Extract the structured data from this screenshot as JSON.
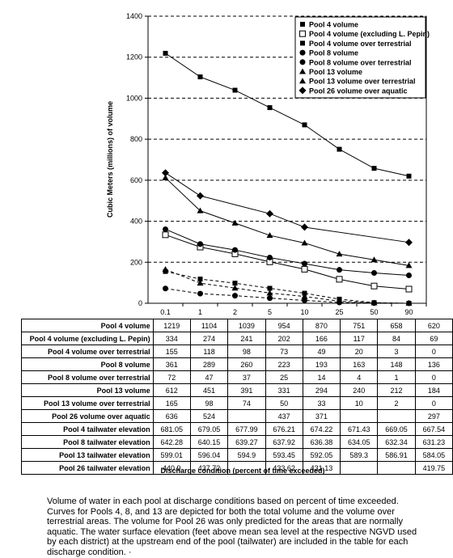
{
  "chart_data": {
    "type": "line",
    "ylabel": "Cubic Meters (millions) of volume",
    "xlabel": "Discharge condition (percent of time exceeded)",
    "categories": [
      "0.1",
      "1",
      "2",
      "5",
      "10",
      "25",
      "50",
      "90"
    ],
    "ylim": [
      0,
      1400
    ],
    "yticks": [
      "0",
      "200",
      "400",
      "600",
      "800",
      "1000",
      "1200",
      "1400"
    ],
    "grid": "horizontal dashed",
    "legend_position": "top-right",
    "series": [
      {
        "name": "Pool 4 volume",
        "marker": "square",
        "line": "solid",
        "values": [
          1219,
          1104,
          1039,
          954,
          870,
          751,
          658,
          620
        ]
      },
      {
        "name": "Pool 4 volume (excluding L. Pepin)",
        "marker": "square-open",
        "line": "solid",
        "values": [
          334,
          274,
          241,
          202,
          166,
          117,
          84,
          69
        ]
      },
      {
        "name": "Pool 4 volume over terrestrial",
        "marker": "square",
        "line": "dashed",
        "values": [
          155,
          118,
          98,
          73,
          49,
          20,
          3,
          0
        ]
      },
      {
        "name": "Pool 8 volume",
        "marker": "circle",
        "line": "solid",
        "values": [
          361,
          289,
          260,
          223,
          193,
          163,
          148,
          136
        ]
      },
      {
        "name": "Pool 8 volume over terrestrial",
        "marker": "circle",
        "line": "dashed",
        "values": [
          72,
          47,
          37,
          25,
          14,
          4,
          1,
          0
        ]
      },
      {
        "name": "Pool 13 volume",
        "marker": "triangle",
        "line": "solid",
        "values": [
          612,
          451,
          391,
          331,
          294,
          240,
          212,
          184
        ]
      },
      {
        "name": "Pool 13 volume over terrestrial",
        "marker": "triangle",
        "line": "dashed",
        "values": [
          165,
          98,
          74,
          50,
          33,
          10,
          2,
          0
        ]
      },
      {
        "name": "Pool 26 volume over aquatic",
        "marker": "diamond",
        "line": "solid",
        "values": [
          636,
          524,
          null,
          437,
          371,
          null,
          null,
          297
        ]
      }
    ],
    "table_rows": [
      {
        "label": "Pool 4 volume",
        "values": [
          "1219",
          "1104",
          "1039",
          "954",
          "870",
          "751",
          "658",
          "620"
        ]
      },
      {
        "label": "Pool 4 volume (excluding L. Pepin)",
        "values": [
          "334",
          "274",
          "241",
          "202",
          "166",
          "117",
          "84",
          "69"
        ]
      },
      {
        "label": "Pool 4 volume over terrestrial",
        "values": [
          "155",
          "118",
          "98",
          "73",
          "49",
          "20",
          "3",
          "0"
        ]
      },
      {
        "label": "Pool 8 volume",
        "values": [
          "361",
          "289",
          "260",
          "223",
          "193",
          "163",
          "148",
          "136"
        ]
      },
      {
        "label": "Pool 8 volume over terrestrial",
        "values": [
          "72",
          "47",
          "37",
          "25",
          "14",
          "4",
          "1",
          "0"
        ]
      },
      {
        "label": "Pool 13 volume",
        "values": [
          "612",
          "451",
          "391",
          "331",
          "294",
          "240",
          "212",
          "184"
        ]
      },
      {
        "label": "Pool 13 volume over terrestrial",
        "values": [
          "165",
          "98",
          "74",
          "50",
          "33",
          "10",
          "2",
          "0"
        ]
      },
      {
        "label": "Pool 26 volume over aquatic",
        "values": [
          "636",
          "524",
          "",
          "437",
          "371",
          "",
          "",
          "297"
        ]
      },
      {
        "label": "Pool 4 tailwater elevation",
        "values": [
          "681.05",
          "679.05",
          "677.99",
          "676.21",
          "674.22",
          "671.43",
          "669.05",
          "667.54"
        ]
      },
      {
        "label": "Pool 8 tailwater elevation",
        "values": [
          "642.28",
          "640.15",
          "639.27",
          "637.92",
          "636.38",
          "634.05",
          "632.34",
          "631.23"
        ]
      },
      {
        "label": "Pool 13 tailwater elevation",
        "values": [
          "599.01",
          "596.04",
          "594.9",
          "593.45",
          "592.05",
          "589.3",
          "586.91",
          "584.05"
        ]
      },
      {
        "label": "Pool 26 tailwater elevation",
        "values": [
          "440.9",
          "437.72",
          "",
          "433.62",
          "431.13",
          "",
          "",
          "419.75"
        ]
      }
    ]
  },
  "caption": "Volume of water in each pool at discharge conditions based on percent of time exceeded. Curves for Pools 4, 8, and 13 are depicted for both the total volume and the volume over terrestrial areas.  The volume for Pool 26 was only predicted for the areas that are normally aquatic.  The water surface elevation (feet above mean sea level at the respective NGVD used by each district) at the upstream end of the pool (tailwater) are included in the table for each discharge condition. ·"
}
